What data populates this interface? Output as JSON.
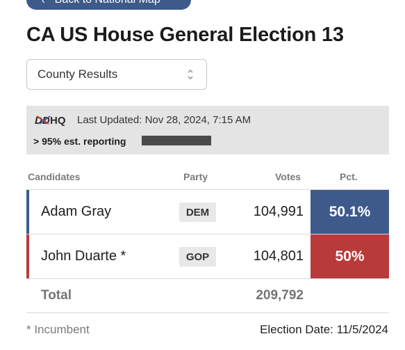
{
  "back_button": {
    "label": "Back to National Map"
  },
  "title": "CA US House General Election 13",
  "view_select": {
    "value": "County Results"
  },
  "info": {
    "logo_text": "DDHQ",
    "last_updated": "Last Updated: Nov 28, 2024, 7:15 AM",
    "reporting": "> 95% est. reporting",
    "reporting_fraction": 0.95
  },
  "table": {
    "headers": {
      "candidates": "Candidates",
      "party": "Party",
      "votes": "Votes",
      "pct": "Pct."
    },
    "rows": [
      {
        "name": "Adam Gray",
        "party": "DEM",
        "votes": "104,991",
        "pct": "50.1%",
        "color": "#3d5a8a"
      },
      {
        "name": "John Duarte *",
        "party": "GOP",
        "votes": "104,801",
        "pct": "50%",
        "color": "#b93a3a"
      }
    ],
    "total": {
      "label": "Total",
      "votes": "209,792"
    }
  },
  "footer": {
    "incumbent_note": "* Incumbent",
    "election_date": "Election Date: 11/5/2024"
  }
}
